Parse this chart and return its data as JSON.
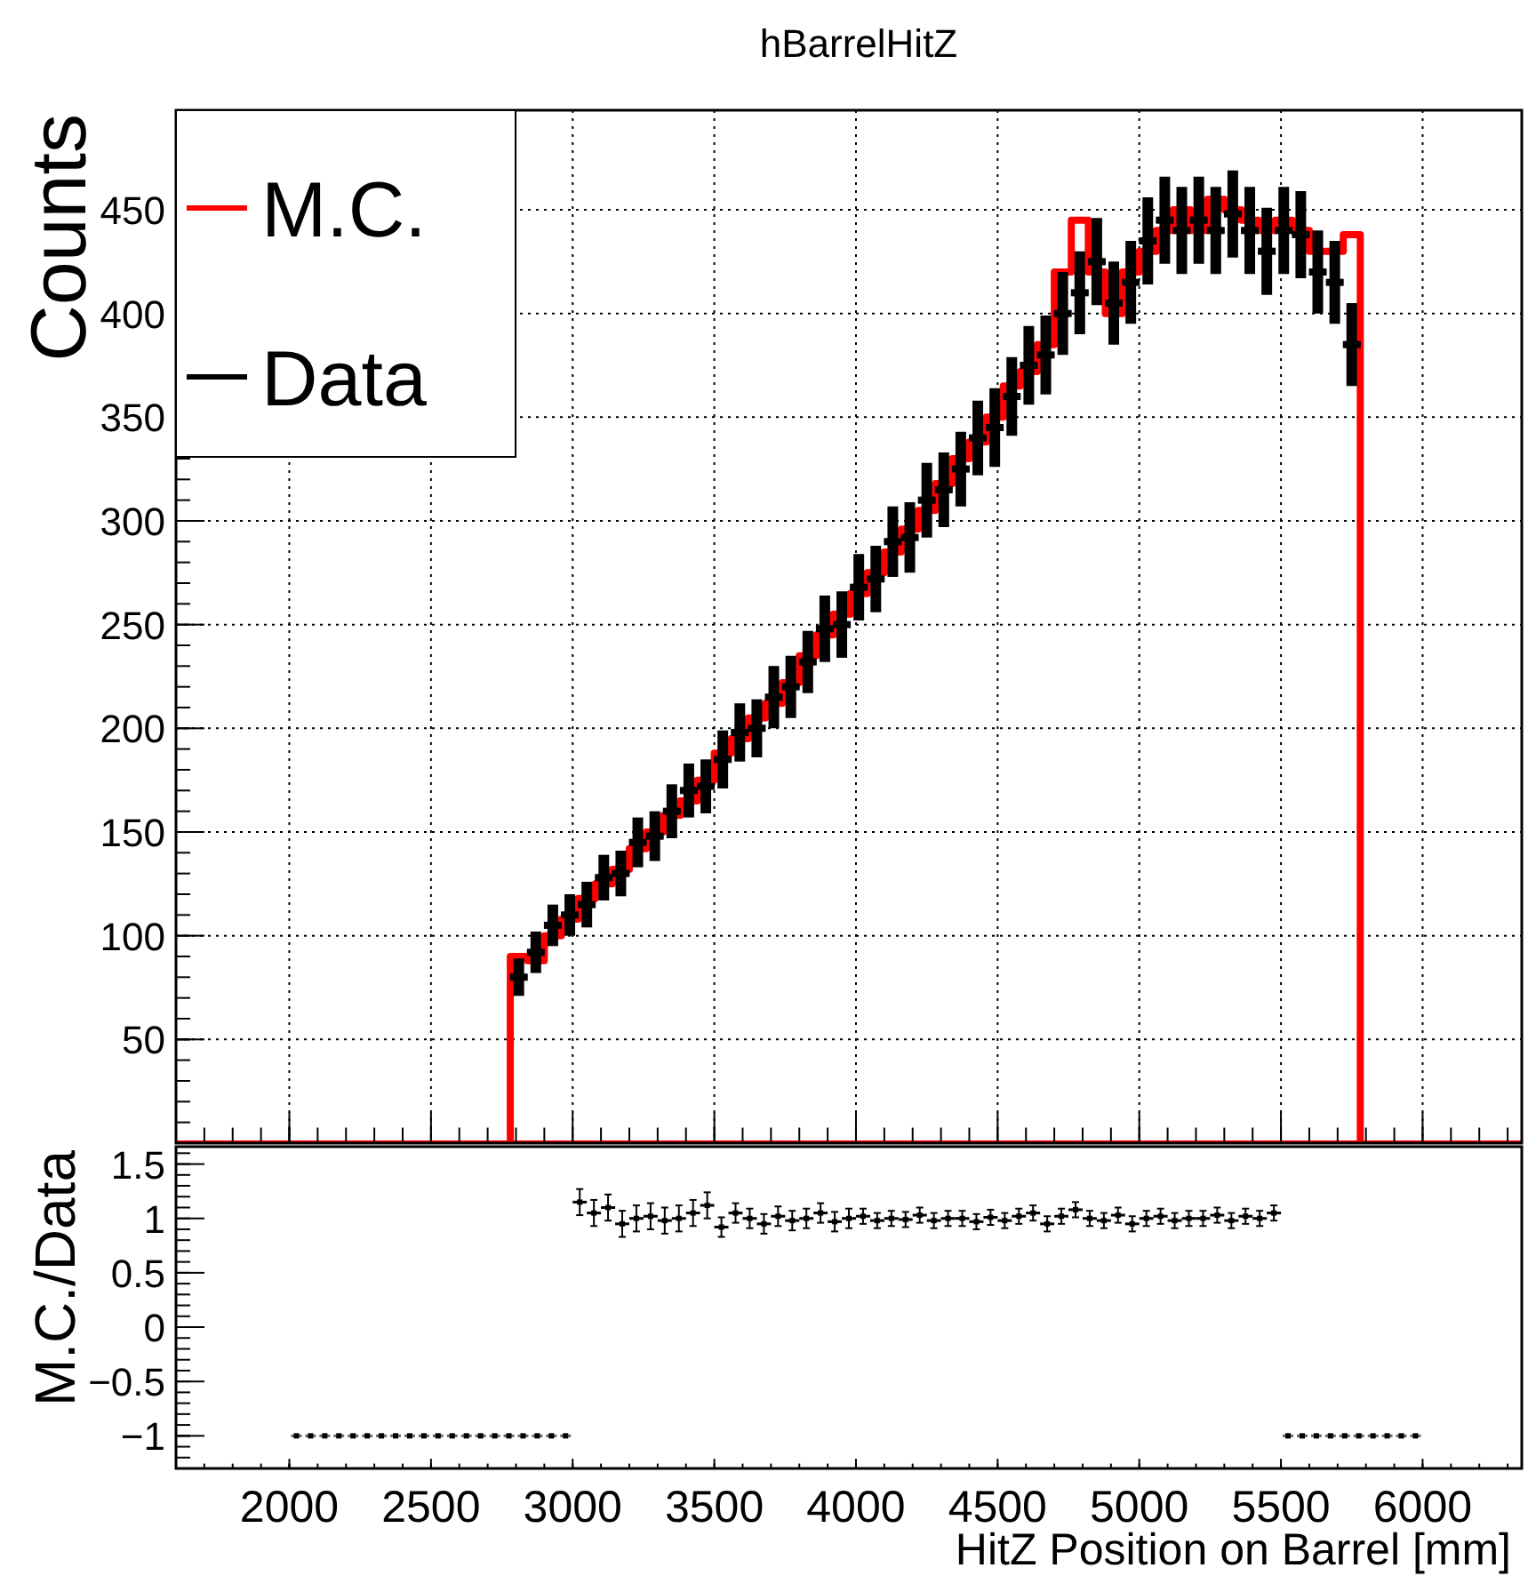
{
  "chart_data": [
    {
      "type": "histogram",
      "title": "hBarrelHitZ",
      "ylabel": "Counts",
      "legend": "top left",
      "grid": true,
      "tick_labels": "y",
      "xlim": [
        1600,
        6350
      ],
      "ylim": [
        0,
        498
      ],
      "xticks": [
        2000,
        2500,
        3000,
        3500,
        4000,
        4500,
        5000,
        5500,
        6000
      ],
      "yticks": [
        50,
        100,
        150,
        200,
        250,
        300,
        350,
        400,
        450
      ],
      "bins": [
        2780,
        2840,
        2900,
        2960,
        3020,
        3080,
        3140,
        3200,
        3260,
        3320,
        3380,
        3440,
        3500,
        3560,
        3620,
        3680,
        3740,
        3800,
        3860,
        3920,
        3980,
        4040,
        4100,
        4160,
        4220,
        4280,
        4340,
        4400,
        4460,
        4520,
        4580,
        4640,
        4700,
        4760,
        4820,
        4880,
        4940,
        5000,
        5060,
        5120,
        5180,
        5240,
        5300,
        5360,
        5420,
        5480,
        5540,
        5600,
        5660,
        5720,
        5780
      ],
      "series": [
        {
          "name": "M.C.",
          "type": "histogram",
          "color": "#ff0000",
          "values": [
            90,
            88,
            100,
            108,
            118,
            125,
            132,
            142,
            150,
            158,
            165,
            175,
            188,
            195,
            205,
            212,
            222,
            235,
            245,
            255,
            265,
            275,
            285,
            296,
            305,
            318,
            330,
            338,
            350,
            365,
            372,
            385,
            420,
            445,
            420,
            400,
            420,
            430,
            440,
            450,
            440,
            455,
            450,
            445,
            440,
            445,
            440,
            430,
            430,
            438
          ]
        },
        {
          "name": "Data",
          "type": "scatter",
          "x": [
            2810,
            2870,
            2930,
            2990,
            3050,
            3110,
            3170,
            3230,
            3290,
            3350,
            3410,
            3470,
            3530,
            3590,
            3650,
            3710,
            3770,
            3830,
            3890,
            3950,
            4010,
            4070,
            4130,
            4190,
            4250,
            4310,
            4370,
            4430,
            4490,
            4550,
            4610,
            4670,
            4730,
            4790,
            4850,
            4910,
            4970,
            5030,
            5090,
            5150,
            5210,
            5270,
            5330,
            5390,
            5450,
            5510,
            5570,
            5630,
            5690,
            5750
          ],
          "xerrors": [
            30,
            30,
            30,
            30,
            30,
            30,
            30,
            30,
            30,
            30,
            30,
            30,
            30,
            30,
            30,
            30,
            30,
            30,
            30,
            30,
            30,
            30,
            30,
            30,
            30,
            30,
            30,
            30,
            30,
            30,
            30,
            30,
            30,
            30,
            30,
            30,
            30,
            30,
            30,
            30,
            30,
            30,
            30,
            30,
            30,
            30,
            30,
            30,
            30,
            30
          ],
          "color": "#000000",
          "values": [
            80,
            92,
            105,
            110,
            115,
            128,
            130,
            145,
            148,
            160,
            170,
            172,
            185,
            198,
            200,
            215,
            220,
            232,
            248,
            250,
            268,
            272,
            290,
            292,
            310,
            315,
            325,
            340,
            345,
            360,
            375,
            380,
            400,
            410,
            425,
            405,
            415,
            435,
            445,
            440,
            445,
            440,
            448,
            440,
            430,
            440,
            438,
            420,
            415,
            385
          ],
          "errors": [
            9,
            10,
            10,
            10,
            11,
            11,
            11,
            12,
            12,
            13,
            13,
            13,
            14,
            14,
            14,
            15,
            15,
            15,
            16,
            16,
            16,
            16,
            17,
            17,
            18,
            18,
            18,
            18,
            19,
            19,
            19,
            19,
            20,
            20,
            21,
            20,
            20,
            21,
            21,
            21,
            21,
            21,
            21,
            21,
            21,
            21,
            21,
            20,
            20,
            20
          ]
        }
      ]
    },
    {
      "type": "scatter",
      "xlabel": "HitZ Position on Barrel [mm]",
      "ylabel": "M.C./Data",
      "grid": false,
      "xlim": [
        1600,
        6350
      ],
      "ylim": [
        -1.3,
        1.66
      ],
      "xticks": [
        2000,
        2500,
        3000,
        3500,
        4000,
        4500,
        5000,
        5500,
        6000
      ],
      "yticks": [
        {
          "value": -1,
          "label": "−1"
        },
        {
          "value": -0.5,
          "label": "−0.5"
        },
        0,
        0.5,
        1,
        1.5
      ],
      "series": [
        {
          "color": "#000000",
          "x": [
            2025,
            2075,
            2125,
            2175,
            2225,
            2275,
            2325,
            2375,
            2425,
            2475,
            2525,
            2575,
            2625,
            2675,
            2725,
            2775,
            2825,
            2875,
            2925,
            2975,
            3025,
            3075,
            3125,
            3175,
            3225,
            3275,
            3325,
            3375,
            3425,
            3475,
            3525,
            3575,
            3625,
            3675,
            3725,
            3775,
            3825,
            3875,
            3925,
            3975,
            4025,
            4075,
            4125,
            4175,
            4225,
            4275,
            4325,
            4375,
            4425,
            4475,
            4525,
            4575,
            4625,
            4675,
            4725,
            4775,
            4825,
            4875,
            4925,
            4975,
            5025,
            5075,
            5125,
            5175,
            5225,
            5275,
            5325,
            5375,
            5425,
            5475,
            5525,
            5575,
            5625,
            5675,
            5725,
            5775,
            5825,
            5875,
            5925,
            5975
          ],
          "values": [
            -1,
            -1,
            -1,
            -1,
            -1,
            -1,
            -1,
            -1,
            -1,
            -1,
            -1,
            -1,
            -1,
            -1,
            -1,
            -1,
            -1,
            -1,
            -1,
            -1,
            1.15,
            1.05,
            1.1,
            0.95,
            1.0,
            1.02,
            0.98,
            1.0,
            1.05,
            1.12,
            0.92,
            1.05,
            1.0,
            0.95,
            1.02,
            0.98,
            1.0,
            1.05,
            0.97,
            1.0,
            1.02,
            0.98,
            1.0,
            0.99,
            1.03,
            0.98,
            1.0,
            1.0,
            0.97,
            1.01,
            0.98,
            1.02,
            1.05,
            0.95,
            1.02,
            1.08,
            1.0,
            0.98,
            1.03,
            0.95,
            1.0,
            1.02,
            0.98,
            1.0,
            1.0,
            1.03,
            0.98,
            1.02,
            1.0,
            1.05,
            -1,
            -1,
            -1,
            -1,
            -1,
            -1,
            -1,
            -1,
            -1,
            -1
          ],
          "errors": [
            null,
            null,
            null,
            null,
            null,
            null,
            null,
            null,
            null,
            null,
            null,
            null,
            null,
            null,
            null,
            null,
            null,
            null,
            null,
            null,
            0.12,
            0.12,
            0.12,
            0.12,
            0.12,
            0.12,
            0.12,
            0.12,
            0.12,
            0.12,
            0.09,
            0.09,
            0.09,
            0.09,
            0.09,
            0.09,
            0.09,
            0.09,
            0.09,
            0.09,
            0.07,
            0.07,
            0.07,
            0.07,
            0.07,
            0.07,
            0.07,
            0.07,
            0.07,
            0.07,
            0.07,
            0.07,
            0.07,
            0.07,
            0.07,
            0.07,
            0.07,
            0.07,
            0.07,
            0.07,
            0.07,
            0.07,
            0.07,
            0.07,
            0.07,
            0.07,
            0.07,
            0.07,
            0.07,
            0.07,
            null,
            null,
            null,
            null,
            null,
            null,
            null,
            null,
            null,
            null
          ],
          "xerrors": [
            25,
            25,
            25,
            25,
            25,
            25,
            25,
            25,
            25,
            25,
            25,
            25,
            25,
            25,
            25,
            25,
            25,
            25,
            25,
            25,
            25,
            25,
            25,
            25,
            25,
            25,
            25,
            25,
            25,
            25,
            25,
            25,
            25,
            25,
            25,
            25,
            25,
            25,
            25,
            25,
            25,
            25,
            25,
            25,
            25,
            25,
            25,
            25,
            25,
            25,
            25,
            25,
            25,
            25,
            25,
            25,
            25,
            25,
            25,
            25,
            25,
            25,
            25,
            25,
            25,
            25,
            25,
            25,
            25,
            25,
            25,
            25,
            25,
            25,
            25,
            25,
            25,
            25,
            25,
            25
          ]
        }
      ]
    }
  ]
}
